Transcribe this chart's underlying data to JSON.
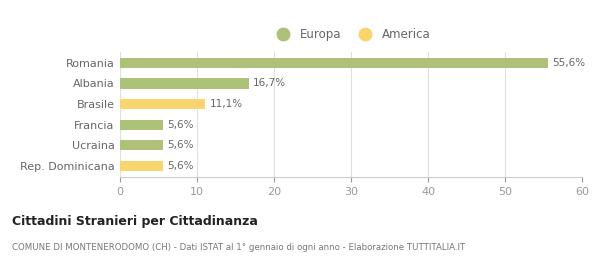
{
  "categories": [
    "Romania",
    "Albania",
    "Brasile",
    "Francia",
    "Ucraina",
    "Rep. Dominicana"
  ],
  "values": [
    55.6,
    16.7,
    11.1,
    5.6,
    5.6,
    5.6
  ],
  "labels": [
    "55,6%",
    "16,7%",
    "11,1%",
    "5,6%",
    "5,6%",
    "5,6%"
  ],
  "colors": [
    "#adc178",
    "#adc178",
    "#f9d56e",
    "#adc178",
    "#adc178",
    "#f9d56e"
  ],
  "legend": [
    {
      "label": "Europa",
      "color": "#adc178"
    },
    {
      "label": "America",
      "color": "#f9d56e"
    }
  ],
  "xlim": [
    0,
    60
  ],
  "xticks": [
    0,
    10,
    20,
    30,
    40,
    50,
    60
  ],
  "title": "Cittadini Stranieri per Cittadinanza",
  "subtitle": "COMUNE DI MONTENERODOMO (CH) - Dati ISTAT al 1° gennaio di ogni anno - Elaborazione TUTTITALIA.IT",
  "background_color": "#ffffff",
  "bar_height": 0.5
}
